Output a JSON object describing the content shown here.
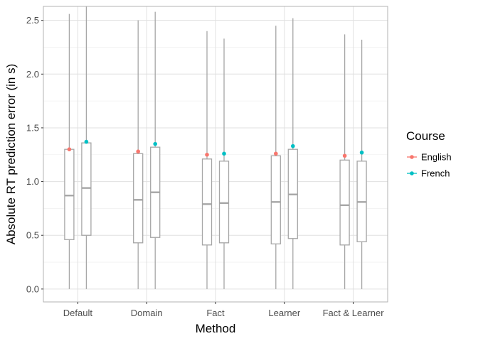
{
  "chart_data": {
    "type": "boxplot",
    "xlabel": "Method",
    "ylabel": "Absolute RT prediction error (in s)",
    "categories": [
      "Default",
      "Domain",
      "Fact",
      "Learner",
      "Fact & Learner"
    ],
    "ylim": [
      -0.12,
      2.63
    ],
    "yticks": [
      0.0,
      0.5,
      1.0,
      1.5,
      2.0,
      2.5
    ],
    "ytick_labels": [
      "0.0",
      "0.5",
      "1.0",
      "1.5",
      "2.0",
      "2.5"
    ],
    "grid": true,
    "legend": {
      "title": "Course",
      "position": "right"
    },
    "series": [
      {
        "name": "English",
        "color": "#F8766D",
        "boxes": [
          {
            "min": 0.0,
            "q1": 0.46,
            "median": 0.87,
            "q3": 1.3,
            "max": 2.56
          },
          {
            "min": 0.0,
            "q1": 0.43,
            "median": 0.83,
            "q3": 1.26,
            "max": 2.5
          },
          {
            "min": 0.0,
            "q1": 0.41,
            "median": 0.79,
            "q3": 1.21,
            "max": 2.4
          },
          {
            "min": 0.0,
            "q1": 0.42,
            "median": 0.81,
            "q3": 1.24,
            "max": 2.45
          },
          {
            "min": 0.0,
            "q1": 0.41,
            "median": 0.78,
            "q3": 1.2,
            "max": 2.37
          }
        ],
        "means": [
          1.3,
          1.28,
          1.25,
          1.26,
          1.24
        ]
      },
      {
        "name": "French",
        "color": "#00BFC4",
        "boxes": [
          {
            "min": 0.0,
            "q1": 0.5,
            "median": 0.94,
            "q3": 1.36,
            "max": 2.63
          },
          {
            "min": 0.0,
            "q1": 0.48,
            "median": 0.9,
            "q3": 1.32,
            "max": 2.58
          },
          {
            "min": 0.0,
            "q1": 0.43,
            "median": 0.8,
            "q3": 1.19,
            "max": 2.33
          },
          {
            "min": 0.0,
            "q1": 0.47,
            "median": 0.88,
            "q3": 1.3,
            "max": 2.52
          },
          {
            "min": 0.0,
            "q1": 0.44,
            "median": 0.81,
            "q3": 1.19,
            "max": 2.32
          }
        ],
        "means": [
          1.37,
          1.35,
          1.26,
          1.33,
          1.27
        ]
      }
    ]
  }
}
